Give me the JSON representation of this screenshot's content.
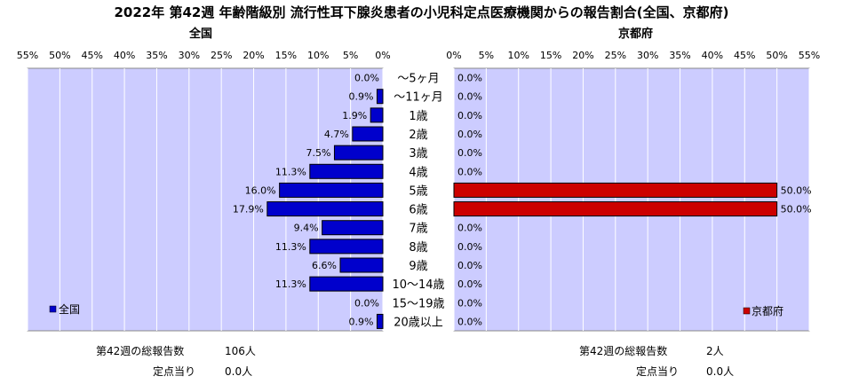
{
  "title": "2022年 第42週 年齢階級別 流行性耳下腺炎患者の小児科定点医療機関からの報告割合(全国、京都府)",
  "colors": {
    "national": "#0000cc",
    "kyoto": "#cc0000",
    "plot_bg": "#ccccff"
  },
  "chart_data": {
    "type": "bar",
    "categories": [
      "～5ヶ月",
      "～11ヶ月",
      "1歳",
      "2歳",
      "3歳",
      "4歳",
      "5歳",
      "6歳",
      "7歳",
      "8歳",
      "9歳",
      "10～14歳",
      "15～19歳",
      "20歳以上"
    ],
    "xlim": [
      0,
      55
    ],
    "ticks": [
      "55%",
      "50%",
      "45%",
      "40%",
      "35%",
      "30%",
      "25%",
      "20%",
      "15%",
      "10%",
      "5%",
      "0%"
    ],
    "ticks_right": [
      "0%",
      "5%",
      "10%",
      "15%",
      "20%",
      "25%",
      "30%",
      "35%",
      "40%",
      "45%",
      "50%",
      "55%"
    ],
    "series": [
      {
        "name": "全国",
        "values": [
          0.0,
          0.9,
          1.9,
          4.7,
          7.5,
          11.3,
          16.0,
          17.9,
          9.4,
          11.3,
          6.6,
          11.3,
          0.0,
          0.9
        ],
        "labels": [
          "0.0%",
          "0.9%",
          "1.9%",
          "4.7%",
          "7.5%",
          "11.3%",
          "16.0%",
          "17.9%",
          "9.4%",
          "11.3%",
          "6.6%",
          "11.3%",
          "0.0%",
          "0.9%"
        ]
      },
      {
        "name": "京都府",
        "values": [
          0,
          0,
          0,
          0,
          0,
          0,
          50.0,
          50.0,
          0,
          0,
          0,
          0,
          0,
          0
        ],
        "labels": [
          "0.0%",
          "0.0%",
          "0.0%",
          "0.0%",
          "0.0%",
          "0.0%",
          "50.0%",
          "50.0%",
          "0.0%",
          "0.0%",
          "0.0%",
          "0.0%",
          "0.0%",
          "0.0%"
        ]
      }
    ]
  },
  "panels": {
    "left": {
      "title": "全国",
      "legend": "全国",
      "total_label": "第42週の総報告数",
      "total_value": "106人",
      "per_label": "定点当り",
      "per_value": "0.0人"
    },
    "right": {
      "title": "京都府",
      "legend": "京都府",
      "total_label": "第42週の総報告数",
      "total_value": "2人",
      "per_label": "定点当り",
      "per_value": "0.0人"
    }
  }
}
